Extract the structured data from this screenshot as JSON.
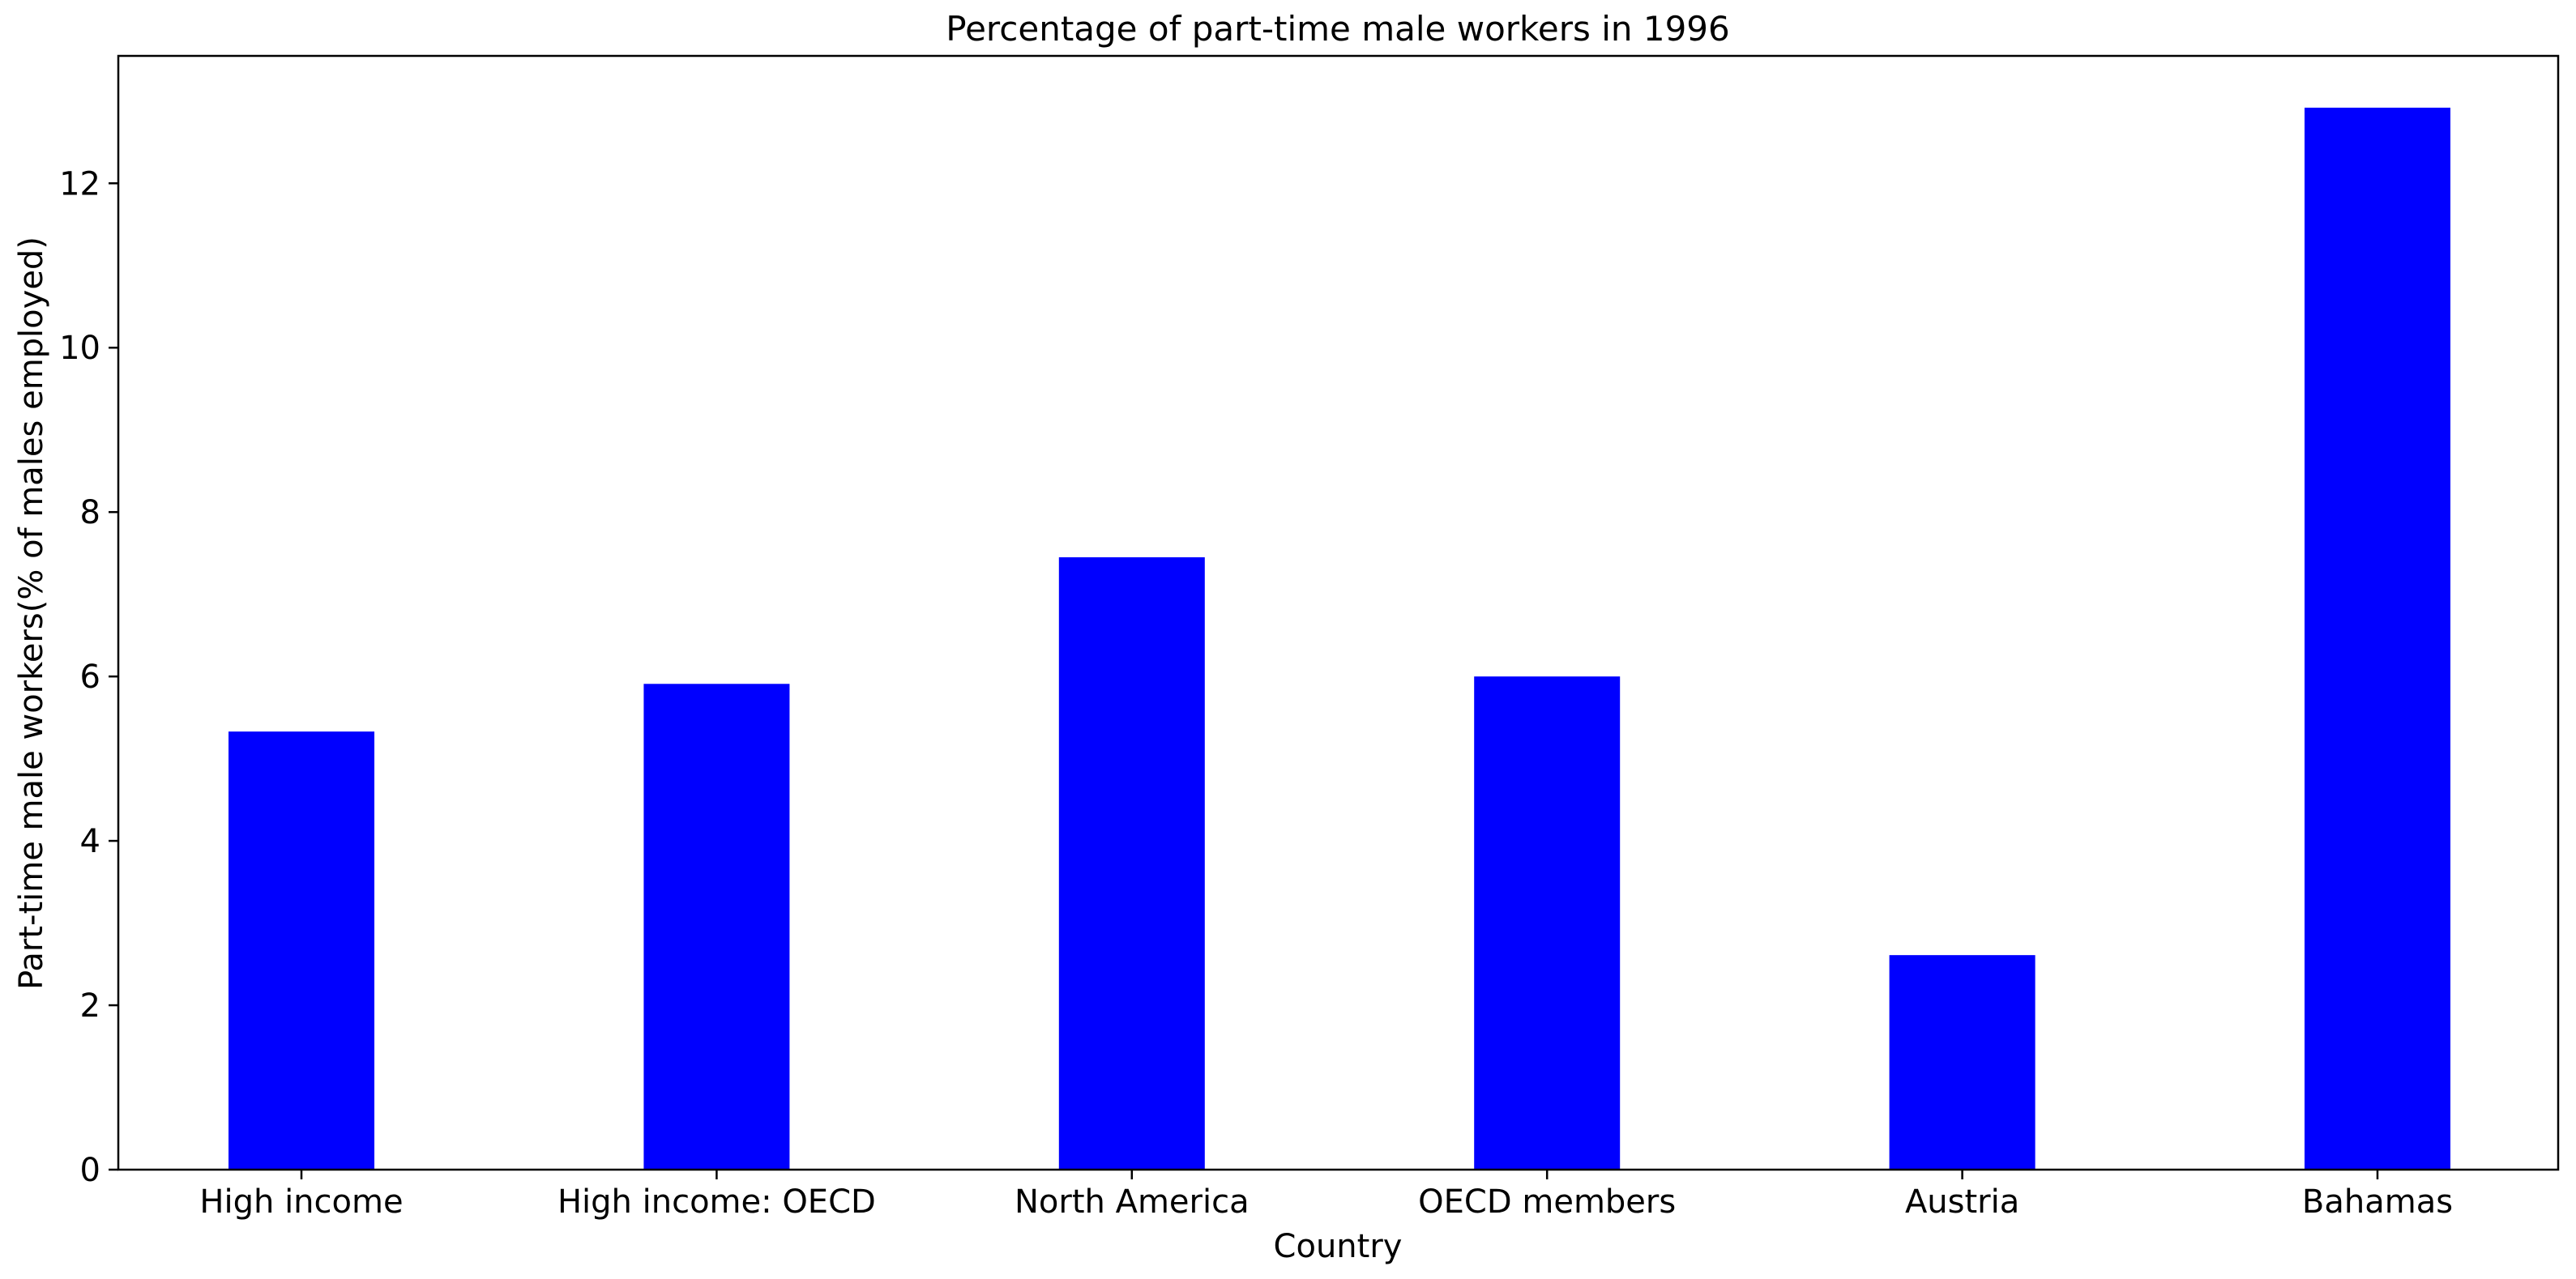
{
  "chart_data": {
    "type": "bar",
    "title": "Percentage of part-time male workers in 1996",
    "xlabel": "Country",
    "ylabel": "Part-time male workers(% of males employed)",
    "categories": [
      "High income",
      "High income: OECD",
      "North America",
      "OECD members",
      "Austria",
      "Bahamas"
    ],
    "values": [
      5.33,
      5.91,
      7.45,
      6.0,
      2.61,
      12.92
    ],
    "ylim": [
      0,
      13.55
    ],
    "yticks": [
      0,
      2,
      4,
      6,
      8,
      10,
      12
    ],
    "bar_color": "#0000ff",
    "grid": false,
    "legend": "none"
  }
}
